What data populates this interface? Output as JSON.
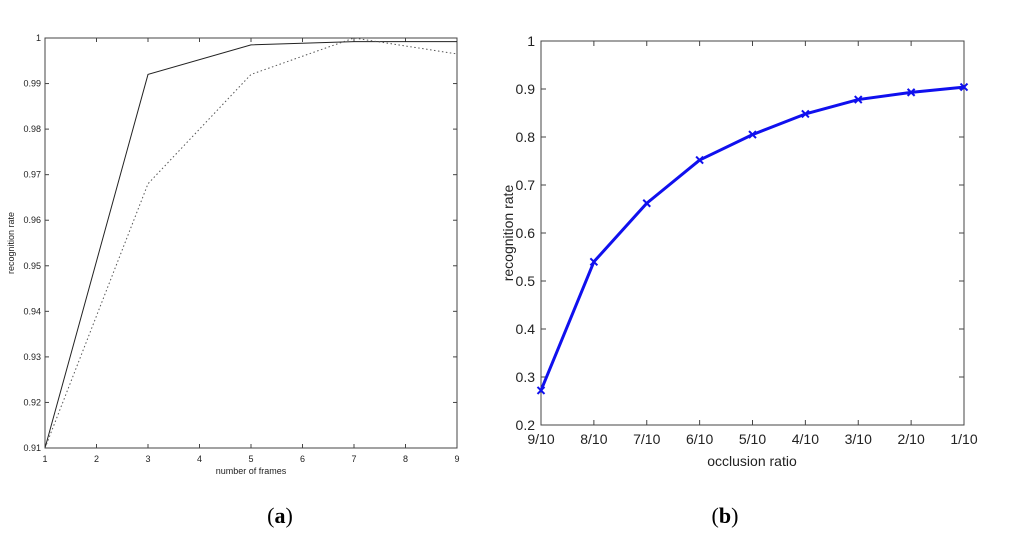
{
  "chart_data": [
    {
      "type": "line",
      "caption": "a",
      "xlabel": "number of frames",
      "ylabel": "recognition rate",
      "xlim": [
        1,
        9
      ],
      "ylim": [
        0.91,
        1.0
      ],
      "x_ticks": [
        "1",
        "2",
        "3",
        "4",
        "5",
        "6",
        "7",
        "8",
        "9"
      ],
      "y_ticks": [
        "0.91",
        "0.92",
        "0.93",
        "0.94",
        "0.95",
        "0.96",
        "0.97",
        "0.98",
        "0.99",
        "1"
      ],
      "x": [
        1,
        3,
        5,
        7,
        9
      ],
      "series": [
        {
          "style": "solid",
          "color": "#222222",
          "values": [
            0.91,
            0.992,
            0.9985,
            0.9992,
            0.9992
          ]
        },
        {
          "style": "dotted",
          "color": "#555555",
          "values": [
            0.91,
            0.968,
            0.992,
            1.0,
            0.9965
          ]
        }
      ],
      "grid": false
    },
    {
      "type": "line",
      "caption": "b",
      "xlabel": "occlusion ratio",
      "ylabel": "recognition rate",
      "ylim": [
        0.2,
        1.0
      ],
      "categories": [
        "9/10",
        "8/10",
        "7/10",
        "6/10",
        "5/10",
        "4/10",
        "3/10",
        "2/10",
        "1/10"
      ],
      "y_ticks": [
        "0.2",
        "0.3",
        "0.4",
        "0.5",
        "0.6",
        "0.7",
        "0.8",
        "0.9",
        "1"
      ],
      "series": [
        {
          "color": "#1010ee",
          "marker": "x",
          "values": [
            0.272,
            0.54,
            0.662,
            0.752,
            0.805,
            0.848,
            0.878,
            0.893,
            0.904
          ]
        }
      ],
      "grid": false
    }
  ]
}
